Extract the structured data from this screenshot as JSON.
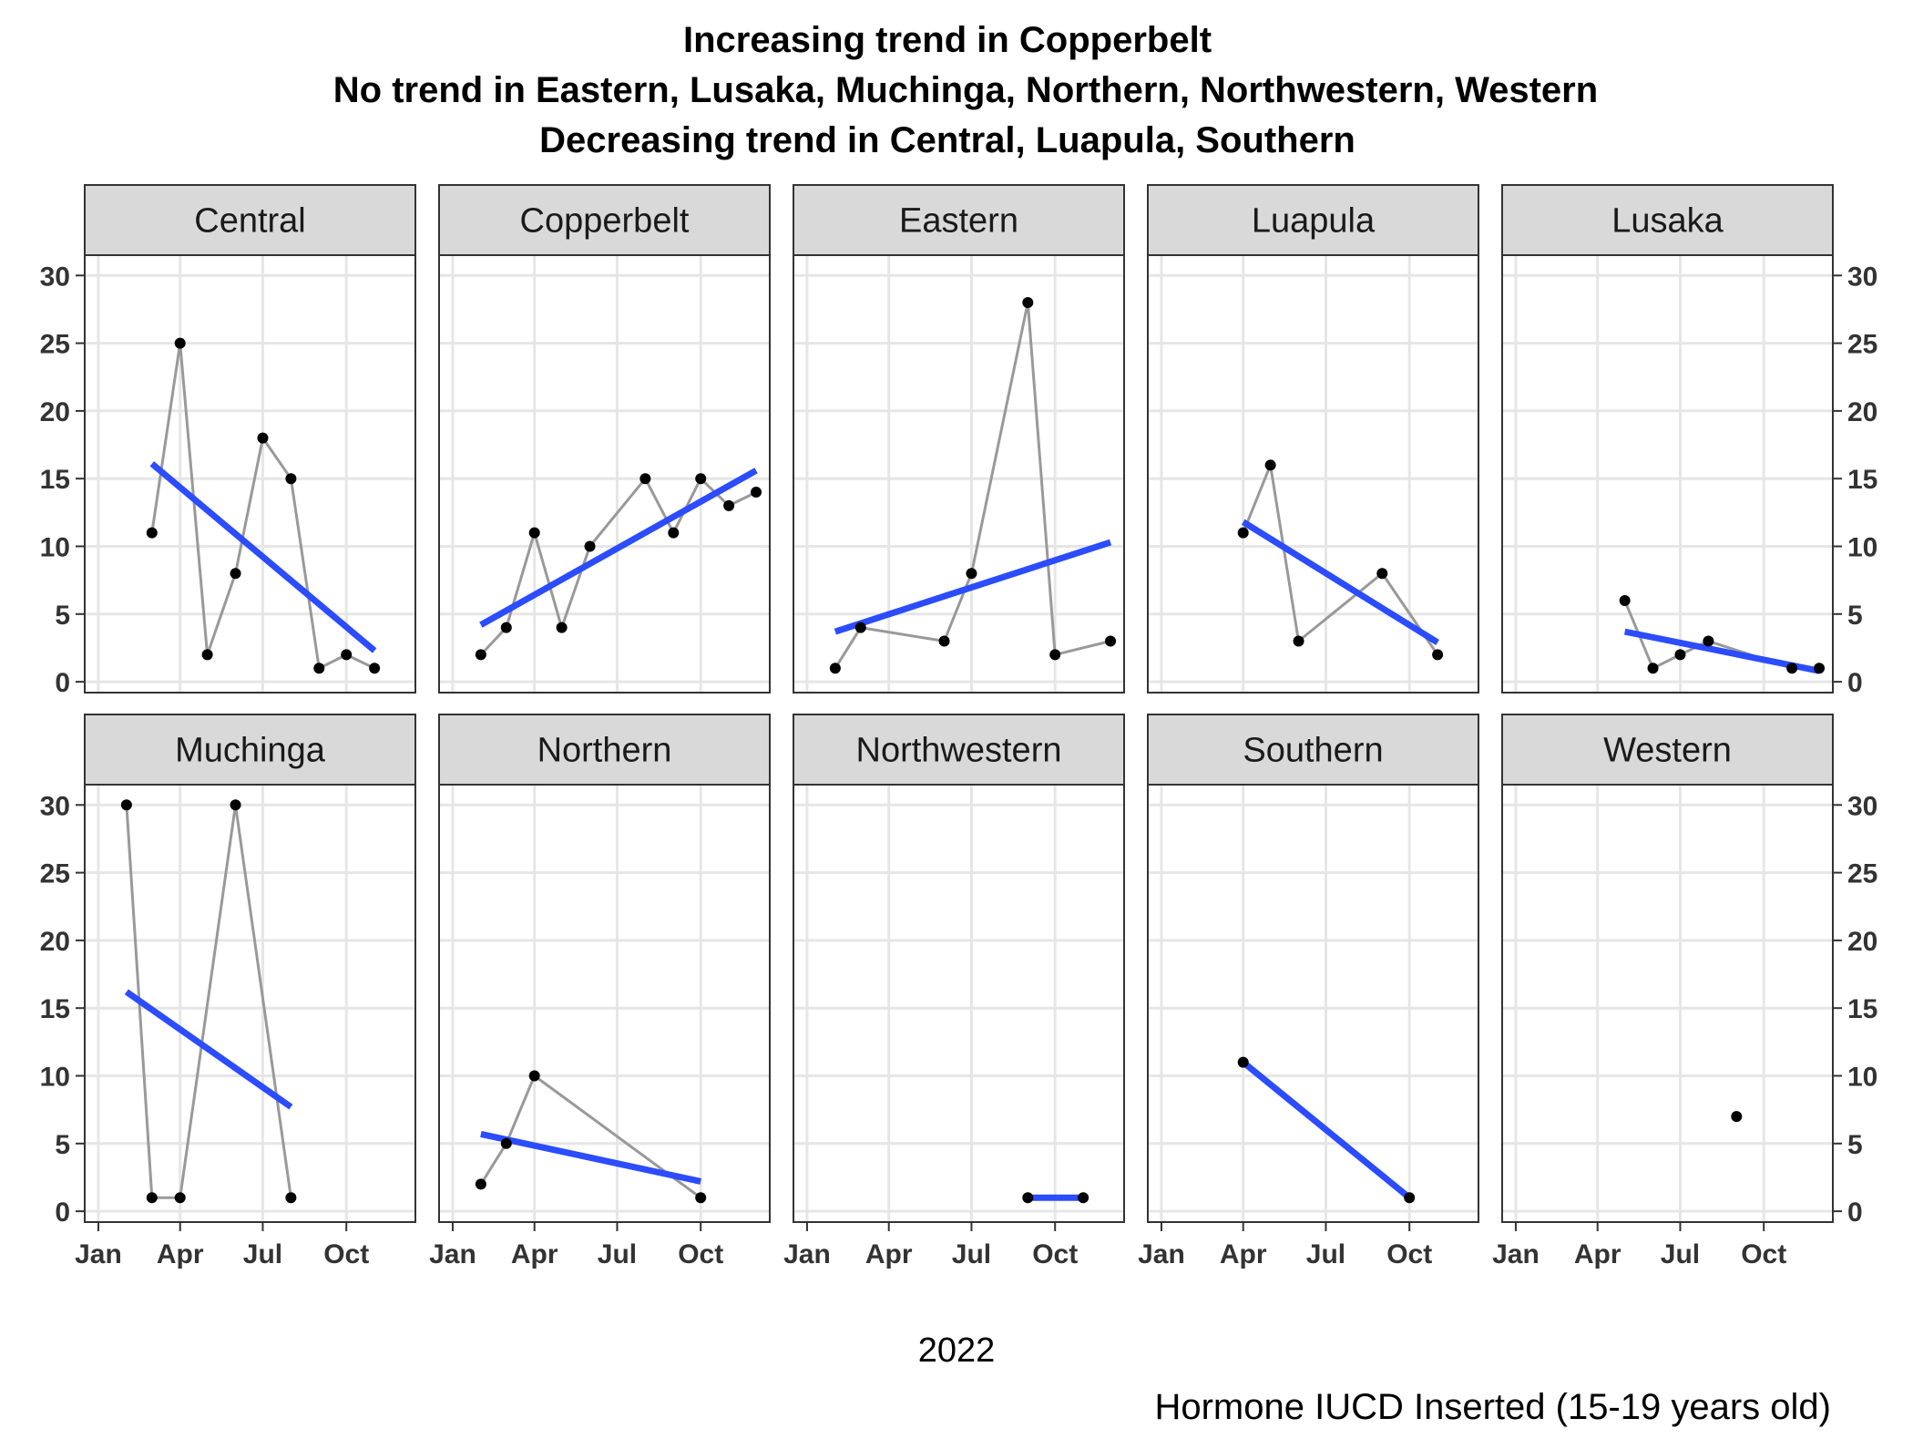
{
  "chart_data": {
    "type": "line",
    "title_lines": [
      "Increasing trend in Copperbelt",
      "No trend in Eastern, Lusaka, Muchinga, Northern, Northwestern, Western",
      "Decreasing trend in Central, Luapula, Southern"
    ],
    "xlabel": "2022",
    "caption": "Hormone IUCD Inserted (15-19 years old)",
    "x_ticks": [
      "Jan",
      "Apr",
      "Jul",
      "Oct"
    ],
    "xlim": [
      "2021-12-17",
      "2022-12-16"
    ],
    "y_ticks": [
      0,
      5,
      10,
      15,
      20,
      25,
      30
    ],
    "ylim": [
      -0.8,
      31.5
    ],
    "grid": true,
    "panels": [
      {
        "name": "Central",
        "points": [
          [
            "2022-03-01",
            11
          ],
          [
            "2022-04-01",
            25
          ],
          [
            "2022-05-01",
            2
          ],
          [
            "2022-06-01",
            8
          ],
          [
            "2022-07-01",
            18
          ],
          [
            "2022-08-01",
            15
          ],
          [
            "2022-09-01",
            1
          ],
          [
            "2022-10-01",
            2
          ],
          [
            "2022-11-01",
            1
          ]
        ],
        "trend": [
          [
            "2022-03-01",
            16.1
          ],
          [
            "2022-11-01",
            2.3
          ]
        ]
      },
      {
        "name": "Copperbelt",
        "points": [
          [
            "2022-02-01",
            2
          ],
          [
            "2022-03-01",
            4
          ],
          [
            "2022-04-01",
            11
          ],
          [
            "2022-05-01",
            4
          ],
          [
            "2022-06-01",
            10
          ],
          [
            "2022-08-01",
            15
          ],
          [
            "2022-09-01",
            11
          ],
          [
            "2022-10-01",
            15
          ],
          [
            "2022-11-01",
            13
          ],
          [
            "2022-12-01",
            14
          ]
        ],
        "trend": [
          [
            "2022-02-01",
            4.2
          ],
          [
            "2022-12-01",
            15.6
          ]
        ]
      },
      {
        "name": "Eastern",
        "points": [
          [
            "2022-02-01",
            1
          ],
          [
            "2022-03-01",
            4
          ],
          [
            "2022-06-01",
            3
          ],
          [
            "2022-07-01",
            8
          ],
          [
            "2022-09-01",
            28
          ],
          [
            "2022-10-01",
            2
          ],
          [
            "2022-12-01",
            3
          ]
        ],
        "trend": [
          [
            "2022-02-01",
            3.7
          ],
          [
            "2022-12-01",
            10.3
          ]
        ]
      },
      {
        "name": "Luapula",
        "points": [
          [
            "2022-04-01",
            11
          ],
          [
            "2022-05-01",
            16
          ],
          [
            "2022-06-01",
            3
          ],
          [
            "2022-09-01",
            8
          ],
          [
            "2022-11-01",
            2
          ]
        ],
        "trend": [
          [
            "2022-04-01",
            11.8
          ],
          [
            "2022-11-01",
            2.9
          ]
        ]
      },
      {
        "name": "Lusaka",
        "points": [
          [
            "2022-05-01",
            6
          ],
          [
            "2022-06-01",
            1
          ],
          [
            "2022-07-01",
            2
          ],
          [
            "2022-08-01",
            3
          ],
          [
            "2022-11-01",
            1
          ],
          [
            "2022-12-01",
            1
          ]
        ],
        "trend": [
          [
            "2022-05-01",
            3.7
          ],
          [
            "2022-12-01",
            0.8
          ]
        ]
      },
      {
        "name": "Muchinga",
        "points": [
          [
            "2022-02-01",
            30
          ],
          [
            "2022-03-01",
            1
          ],
          [
            "2022-04-01",
            1
          ],
          [
            "2022-06-01",
            30
          ],
          [
            "2022-08-01",
            1
          ]
        ],
        "trend": [
          [
            "2022-02-01",
            16.2
          ],
          [
            "2022-08-01",
            7.7
          ]
        ]
      },
      {
        "name": "Northern",
        "points": [
          [
            "2022-02-01",
            2
          ],
          [
            "2022-03-01",
            5
          ],
          [
            "2022-04-01",
            10
          ],
          [
            "2022-10-01",
            1
          ]
        ],
        "trend": [
          [
            "2022-02-01",
            5.7
          ],
          [
            "2022-10-01",
            2.2
          ]
        ]
      },
      {
        "name": "Northwestern",
        "points": [
          [
            "2022-09-01",
            1
          ],
          [
            "2022-11-01",
            1
          ]
        ],
        "trend": [
          [
            "2022-09-01",
            1
          ],
          [
            "2022-11-01",
            1
          ]
        ]
      },
      {
        "name": "Southern",
        "points": [
          [
            "2022-04-01",
            11
          ],
          [
            "2022-10-01",
            1
          ]
        ],
        "trend": [
          [
            "2022-04-01",
            11
          ],
          [
            "2022-10-01",
            1
          ]
        ]
      },
      {
        "name": "Western",
        "points": [
          [
            "2022-09-01",
            7
          ]
        ],
        "trend": null
      }
    ]
  },
  "colors": {
    "trend_line": "#2b4cff",
    "series_line": "#999999",
    "point": "#000000",
    "strip_bg": "#d9d9d9",
    "grid": "#e6e6e6",
    "panel_border": "#333333"
  }
}
